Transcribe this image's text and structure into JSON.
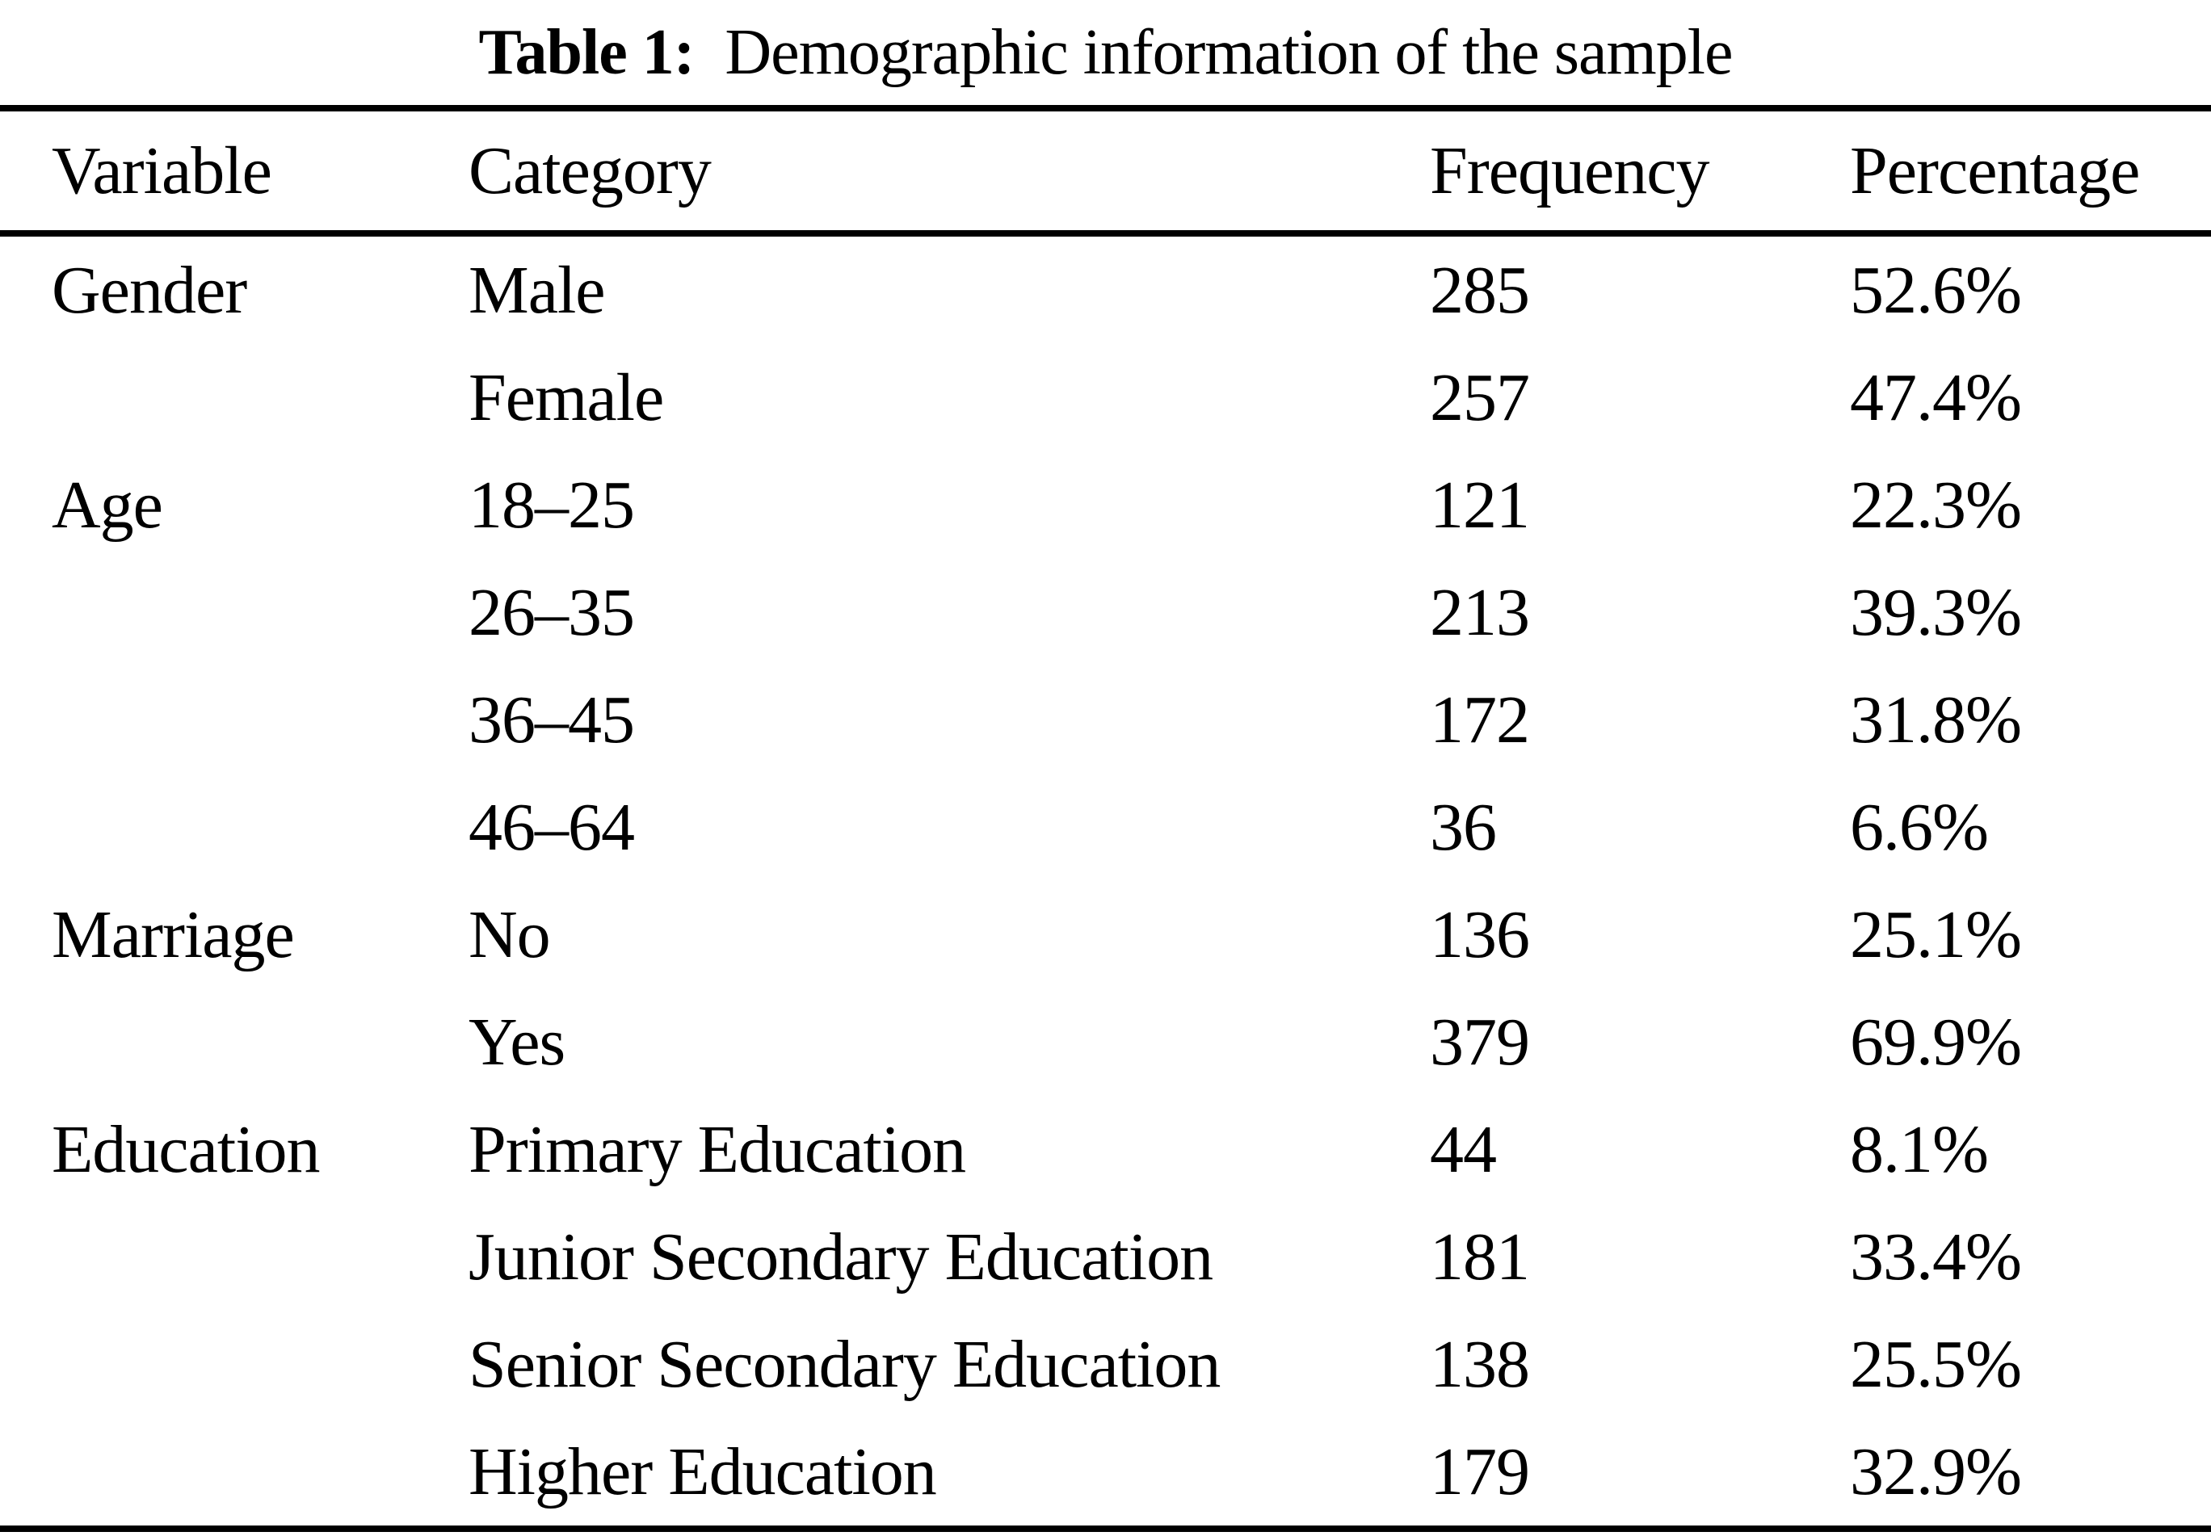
{
  "page": {
    "title": {
      "label": "Table 1:",
      "text": "  Demographic information of the sample"
    }
  },
  "table": {
    "columns": [
      "Variable",
      "Category",
      "Frequency",
      "Percentage"
    ],
    "rows": [
      [
        "Gender",
        "Male",
        "285",
        "52.6%"
      ],
      [
        "",
        "Female",
        "257",
        "47.4%"
      ],
      [
        "Age",
        "18–25",
        "121",
        "22.3%"
      ],
      [
        "",
        "26–35",
        "213",
        "39.3%"
      ],
      [
        "",
        "36–45",
        "172",
        "31.8%"
      ],
      [
        "",
        "46–64",
        "36",
        "6.6%"
      ],
      [
        "Marriage",
        "No",
        "136",
        "25.1%"
      ],
      [
        "",
        "Yes",
        "379",
        "69.9%"
      ],
      [
        "Education",
        "Primary Education",
        "44",
        "8.1%"
      ],
      [
        "",
        "Junior Secondary Education",
        "181",
        "33.4%"
      ],
      [
        "",
        "Senior Secondary Education",
        "138",
        "25.5%"
      ],
      [
        "",
        "Higher Education",
        "179",
        "32.9%"
      ]
    ]
  }
}
